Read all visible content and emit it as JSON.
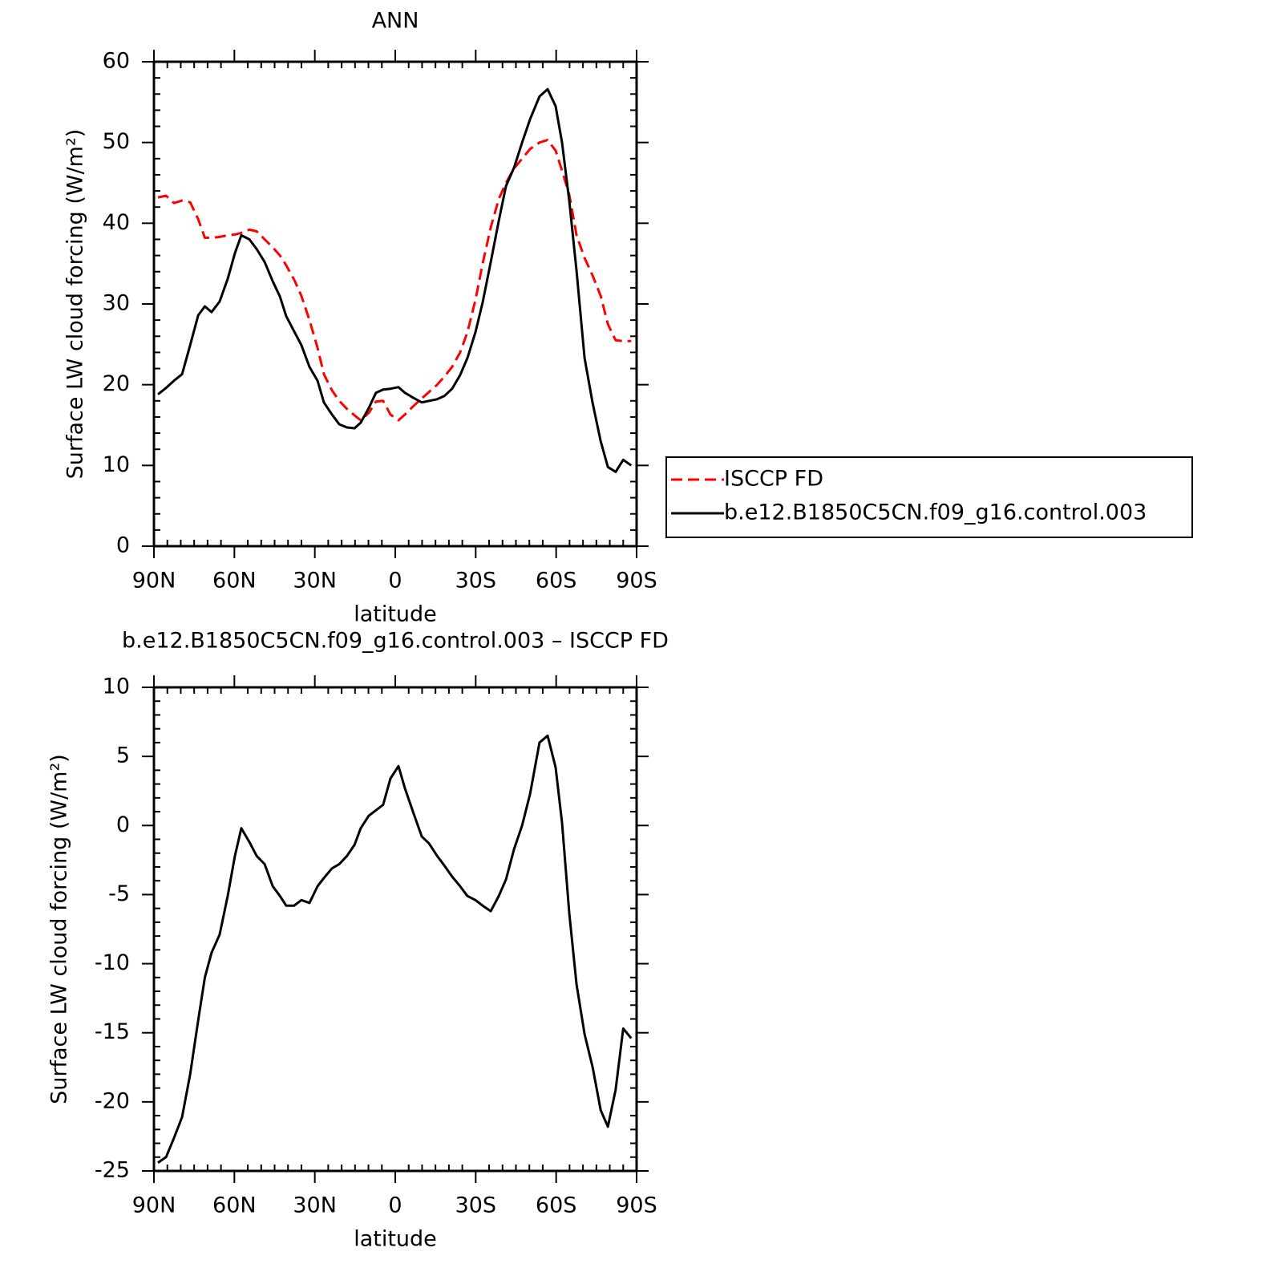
{
  "chart_data": [
    {
      "type": "line",
      "title": "ANN",
      "xlabel": "latitude",
      "ylabel": "Surface LW cloud forcing (W/m²)",
      "x": [
        88.5,
        85.5,
        82.5,
        79.5,
        76.5,
        73.5,
        71,
        68.5,
        65.5,
        62.5,
        59.8,
        57.4,
        54.4,
        51.7,
        48.7,
        45.7,
        43,
        40.7,
        37.7,
        35,
        32,
        29,
        26.6,
        23.6,
        20.9,
        18,
        15.2,
        12.9,
        9.9,
        7.2,
        4.5,
        1.8,
        -1.2,
        -3.6,
        -6.6,
        -9.9,
        -12.6,
        -15.6,
        -18.3,
        -21.2,
        -24.2,
        -26.9,
        -29.9,
        -32.6,
        -35.6,
        -38.6,
        -41.3,
        -44.3,
        -47.3,
        -50.3,
        -53.8,
        -56.8,
        -59.8,
        -62.2,
        -64.9,
        -67.6,
        -70.6,
        -73.6,
        -76.6,
        -79.3,
        -82.2,
        -85,
        -88
      ],
      "series": [
        {
          "name": "ISCCP FD",
          "color": "#ff0000",
          "linestyle": "dashed",
          "values": [
            43.2,
            43.4,
            42.5,
            42.8,
            42.6,
            40.5,
            38.2,
            38.2,
            38.3,
            38.5,
            38.6,
            38.8,
            39.2,
            39.0,
            38.0,
            37.0,
            36.0,
            34.8,
            33.0,
            31.0,
            28.0,
            24.6,
            21.3,
            19.3,
            18.0,
            17.0,
            16.2,
            15.6,
            16.5,
            17.9,
            18.0,
            16.3,
            15.6,
            16.3,
            17.3,
            18.3,
            19.1,
            20.0,
            21.0,
            22.2,
            24.0,
            26.5,
            30.5,
            35.0,
            39.5,
            43.0,
            45.0,
            46.8,
            48.0,
            49.2,
            50.0,
            50.3,
            49.0,
            46.5,
            43.5,
            38.5,
            35.7,
            33.5,
            31.0,
            27.5,
            25.5,
            25.4,
            25.4
          ]
        },
        {
          "name": "b.e12.B1850C5CN.f09_g16.control.003",
          "color": "#000000",
          "linestyle": "solid",
          "values": [
            18.8,
            19.6,
            20.5,
            21.3,
            24.9,
            28.6,
            29.7,
            29.0,
            30.3,
            33.1,
            36.3,
            38.5,
            38.0,
            36.8,
            35.2,
            32.8,
            30.9,
            28.5,
            26.6,
            24.9,
            22.2,
            20.5,
            17.8,
            16.3,
            15.1,
            14.7,
            14.6,
            15.3,
            17.1,
            19.0,
            19.4,
            19.5,
            19.7,
            19.0,
            18.4,
            17.8,
            18.0,
            18.2,
            18.6,
            19.5,
            21.2,
            23.3,
            26.5,
            30.2,
            35.2,
            40.3,
            44.6,
            46.9,
            50.0,
            52.9,
            55.7,
            56.6,
            54.5,
            50.0,
            42.7,
            34.1,
            23.3,
            17.7,
            13.0,
            9.8,
            9.2,
            10.7,
            10.0
          ]
        }
      ],
      "xlim": [
        90,
        -90
      ],
      "xticks": [
        {
          "value": 90,
          "label": "90N"
        },
        {
          "value": 60,
          "label": "60N"
        },
        {
          "value": 30,
          "label": "30N"
        },
        0,
        {
          "value": -30,
          "label": "30S"
        },
        {
          "value": -60,
          "label": "60S"
        },
        {
          "value": -90,
          "label": "90S"
        }
      ],
      "ylim": [
        0,
        60
      ],
      "yticks": [
        0,
        10,
        20,
        30,
        40,
        50,
        60
      ],
      "legend": "right"
    },
    {
      "type": "line",
      "title": "b.e12.B1850C5CN.f09_g16.control.003 – ISCCP FD",
      "xlabel": "latitude",
      "ylabel": "Surface LW cloud forcing (W/m²)",
      "x": [
        88.5,
        85.5,
        82.5,
        79.5,
        76.5,
        73.5,
        71,
        68.5,
        65.5,
        62.5,
        59.8,
        57.4,
        54.4,
        51.7,
        48.7,
        45.7,
        43,
        40.7,
        37.7,
        35,
        32,
        29,
        26.6,
        23.6,
        20.9,
        18,
        15.2,
        12.9,
        9.9,
        7.2,
        4.5,
        1.8,
        -1.2,
        -3.6,
        -6.6,
        -9.9,
        -12.6,
        -15.6,
        -18.3,
        -21.2,
        -24.2,
        -26.9,
        -29.9,
        -32.6,
        -35.6,
        -38.6,
        -41.3,
        -44.3,
        -47.3,
        -50.3,
        -53.8,
        -56.8,
        -59.8,
        -62.2,
        -64.9,
        -67.6,
        -70.6,
        -73.6,
        -76.6,
        -79.3,
        -82.2,
        -85,
        -88
      ],
      "series": [
        {
          "color": "#000000",
          "linestyle": "solid",
          "values": [
            -24.4,
            -24.0,
            -22.6,
            -21.1,
            -18.0,
            -14.1,
            -11.0,
            -9.2,
            -7.9,
            -5.1,
            -2.2,
            -0.2,
            -1.2,
            -2.2,
            -2.8,
            -4.4,
            -5.1,
            -5.8,
            -5.8,
            -5.4,
            -5.6,
            -4.4,
            -3.8,
            -3.1,
            -2.8,
            -2.2,
            -1.4,
            -0.2,
            0.7,
            1.1,
            1.5,
            3.4,
            4.3,
            2.7,
            1.0,
            -0.8,
            -1.3,
            -2.2,
            -2.9,
            -3.7,
            -4.4,
            -5.1,
            -5.4,
            -5.8,
            -6.2,
            -5.1,
            -3.9,
            -1.7,
            0.0,
            2.3,
            6.0,
            6.5,
            4.2,
            0.2,
            -6.4,
            -11.5,
            -15.1,
            -17.5,
            -20.6,
            -21.8,
            -19.1,
            -14.7,
            -15.4
          ]
        }
      ],
      "xlim": [
        90,
        -90
      ],
      "xticks": [
        {
          "value": 90,
          "label": "90N"
        },
        {
          "value": 60,
          "label": "60N"
        },
        {
          "value": 30,
          "label": "30N"
        },
        0,
        {
          "value": -30,
          "label": "30S"
        },
        {
          "value": -60,
          "label": "60S"
        },
        {
          "value": -90,
          "label": "90S"
        }
      ],
      "ylim": [
        -25,
        10
      ],
      "yticks": [
        -25,
        -20,
        -15,
        -10,
        -5,
        0,
        5,
        10
      ]
    }
  ]
}
